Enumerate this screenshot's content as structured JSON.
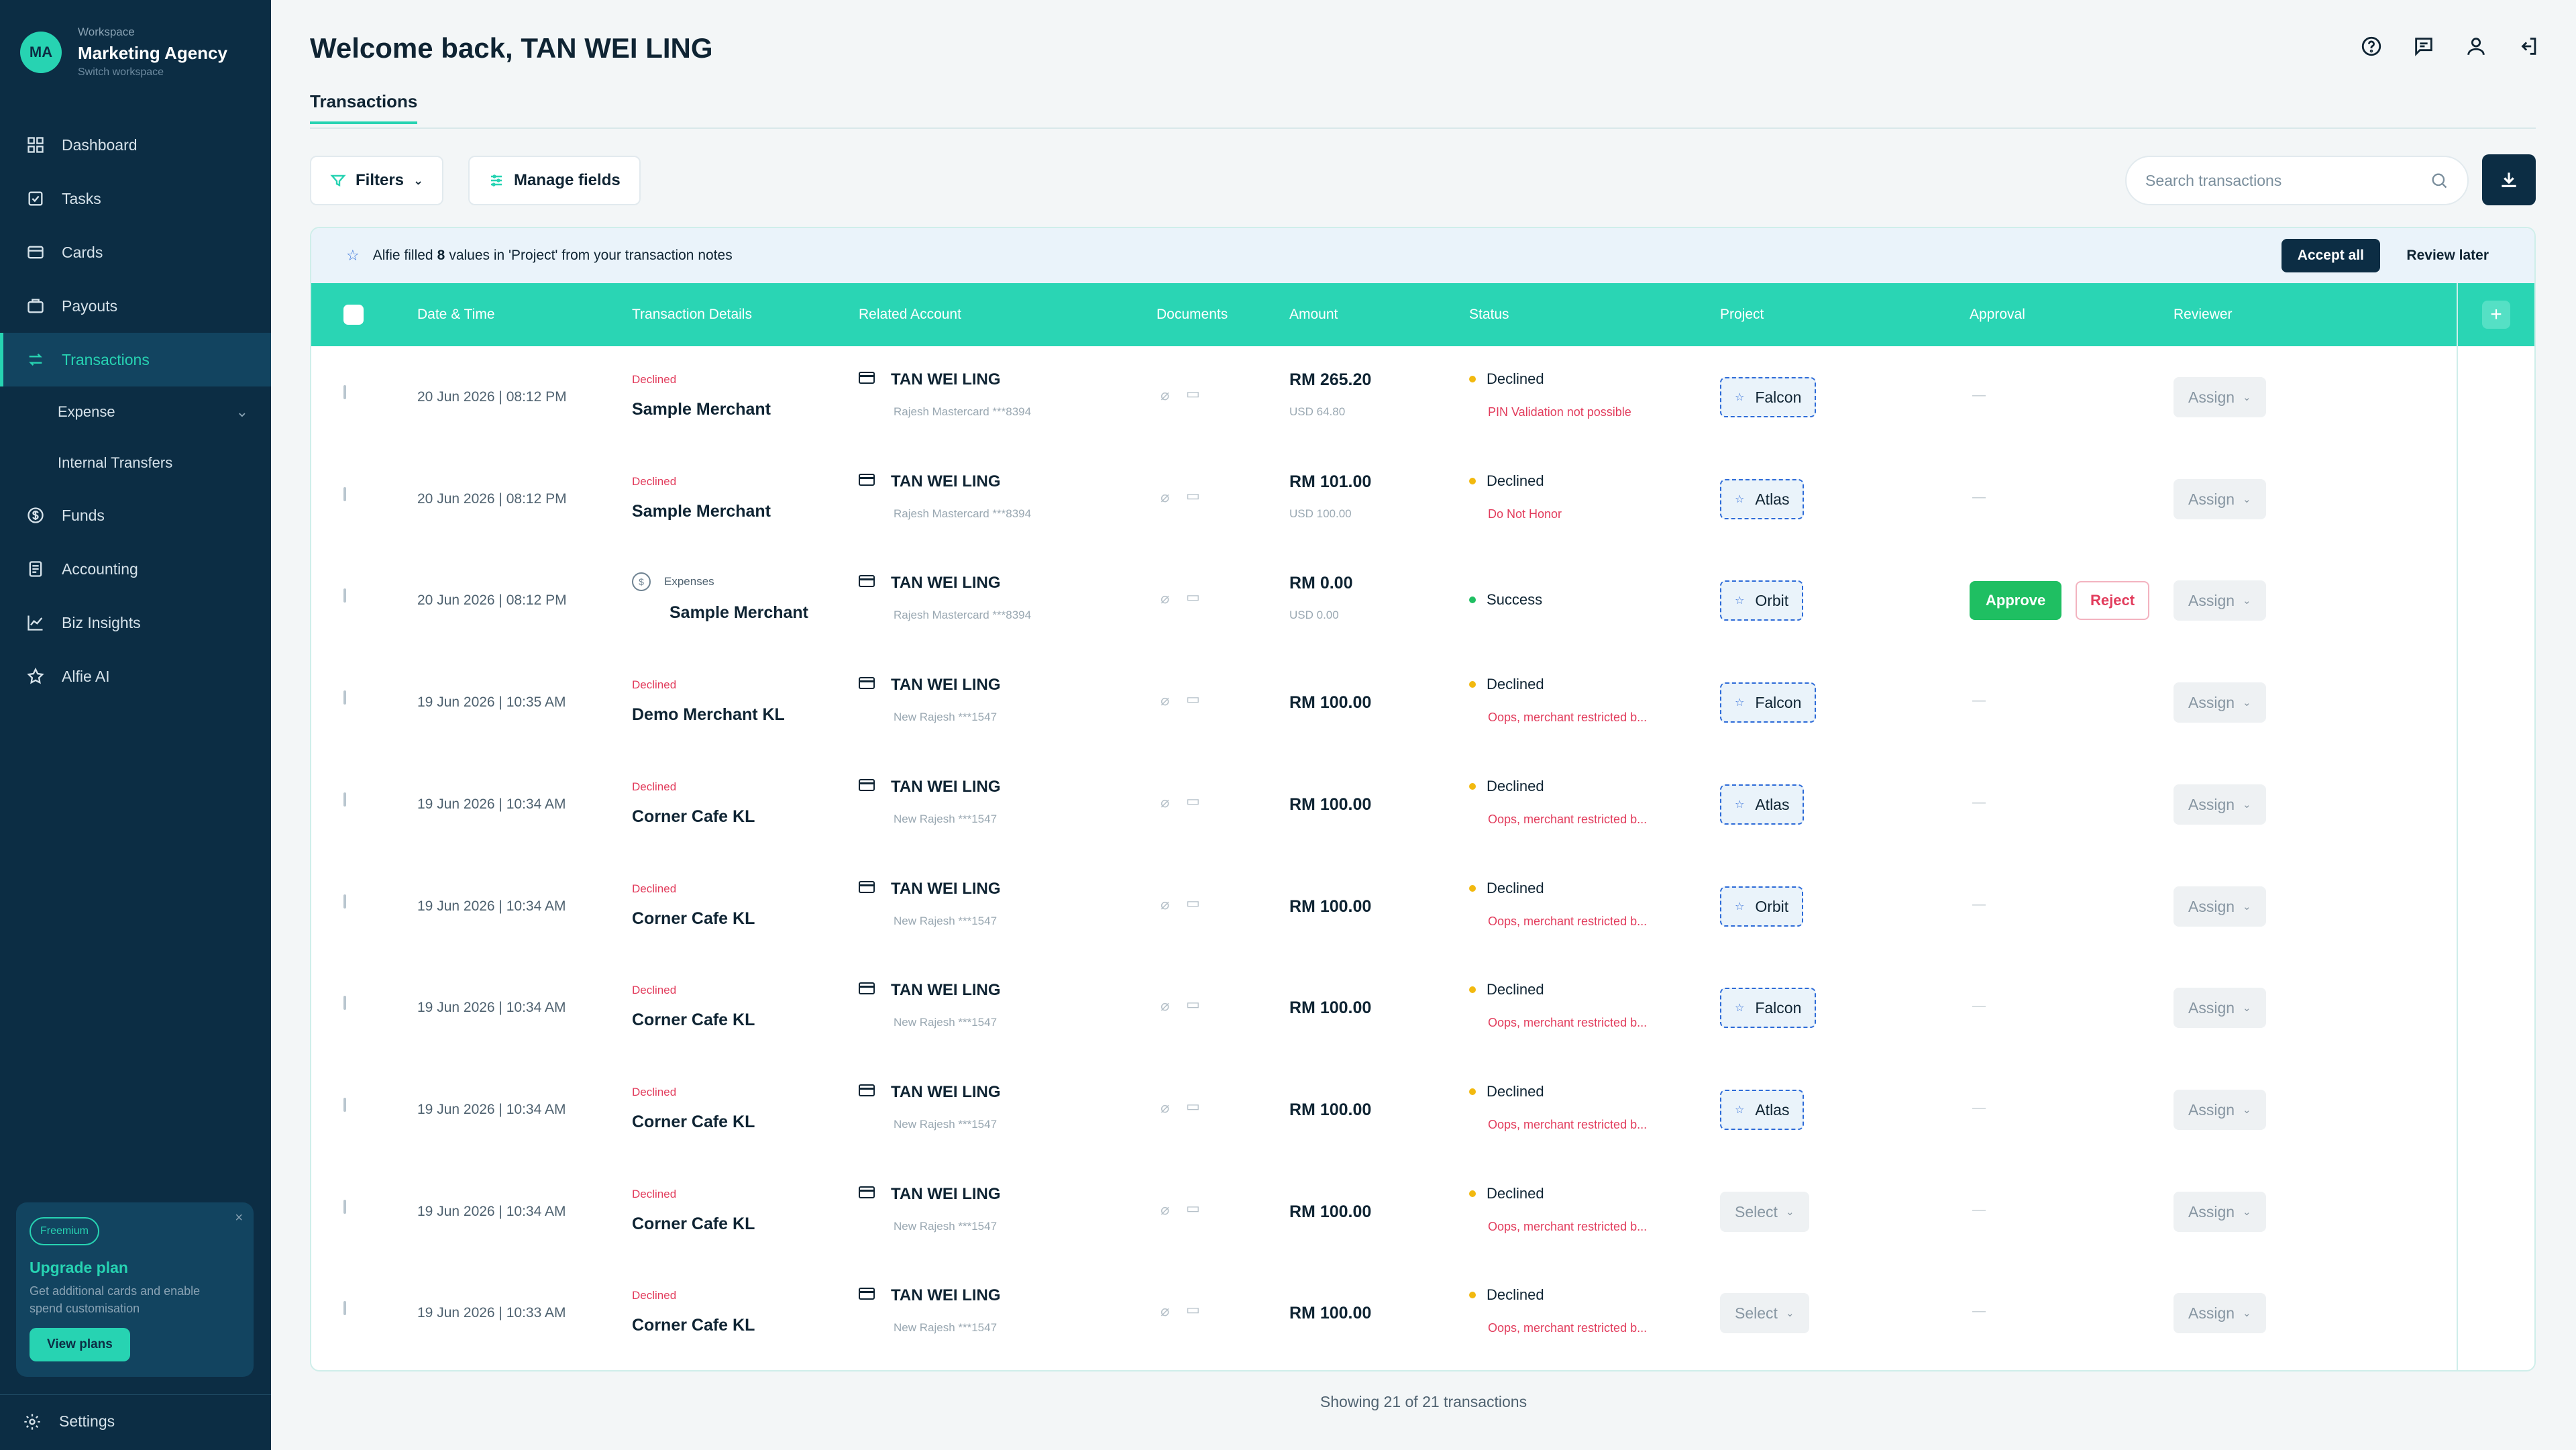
{
  "workspace": {
    "initials": "MA",
    "label": "Workspace",
    "name": "Marketing Agency",
    "switch": "Switch workspace"
  },
  "nav": [
    {
      "label": "Dashboard",
      "icon": "dashboard-icon"
    },
    {
      "label": "Tasks",
      "icon": "tasks-icon"
    },
    {
      "label": "Cards",
      "icon": "cards-icon"
    },
    {
      "label": "Payouts",
      "icon": "payouts-icon"
    },
    {
      "label": "Transactions",
      "icon": "transactions-icon"
    },
    {
      "label": "Expense"
    },
    {
      "label": "Internal Transfers"
    },
    {
      "label": "Funds",
      "icon": "funds-icon"
    },
    {
      "label": "Accounting",
      "icon": "accounting-icon"
    },
    {
      "label": "Biz Insights",
      "icon": "insights-icon"
    },
    {
      "label": "Alfie AI",
      "icon": "star-icon"
    }
  ],
  "upgrade": {
    "badge": "Freemium",
    "title": "Upgrade plan",
    "desc": "Get additional cards and enable spend customisation",
    "button": "View plans",
    "close": "×"
  },
  "settings": "Settings",
  "header": {
    "welcome": "Welcome back, TAN WEI LING",
    "tab": "Transactions"
  },
  "toolbar": {
    "filters": "Filters",
    "manage_fields": "Manage fields",
    "search_placeholder": "Search transactions"
  },
  "banner": {
    "pre": "Alfie filled",
    "count": "8",
    "post": "values in 'Project' from your transaction notes",
    "accept": "Accept all",
    "later": "Review later"
  },
  "columns": [
    "Date & Time",
    "Transaction Details",
    "Related Account",
    "Documents",
    "Amount",
    "Status",
    "Project",
    "Approval",
    "Reviewer"
  ],
  "rows": [
    {
      "date": "20 Jun 2026 | 08:12 PM",
      "tag": "Declined",
      "merchant": "Sample Merchant",
      "acct": "TAN WEI LING",
      "acct_sub": "Rajesh Mastercard ***8394",
      "amount": "RM 265.20",
      "amount_sub": "USD 64.80",
      "status": "Declined",
      "status_sub": "PIN Validation not possible",
      "project": "Falcon",
      "approval": "—",
      "reviewer": "Assign"
    },
    {
      "date": "20 Jun 2026 | 08:12 PM",
      "tag": "Declined",
      "merchant": "Sample Merchant",
      "acct": "TAN WEI LING",
      "acct_sub": "Rajesh Mastercard ***8394",
      "amount": "RM 101.00",
      "amount_sub": "USD 100.00",
      "status": "Declined",
      "status_sub": "Do Not Honor",
      "project": "Atlas",
      "approval": "—",
      "reviewer": "Assign"
    },
    {
      "date": "20 Jun 2026 | 08:12 PM",
      "tag": "Expenses",
      "merchant": "Sample Merchant",
      "acct": "TAN WEI LING",
      "acct_sub": "Rajesh Mastercard ***8394",
      "amount": "RM 0.00",
      "amount_sub": "USD 0.00",
      "status": "Success",
      "status_sub": "",
      "project": "Orbit",
      "approve": "Approve",
      "reject": "Reject",
      "reviewer": "Assign"
    },
    {
      "date": "19 Jun 2026 | 10:35 AM",
      "tag": "Declined",
      "merchant": "Demo Merchant KL",
      "acct": "TAN WEI LING",
      "acct_sub": "New Rajesh ***1547",
      "amount": "RM 100.00",
      "amount_sub": "",
      "status": "Declined",
      "status_sub": "Oops, merchant restricted b...",
      "project": "Falcon",
      "approval": "—",
      "reviewer": "Assign"
    },
    {
      "date": "19 Jun 2026 | 10:34 AM",
      "tag": "Declined",
      "merchant": "Corner Cafe KL",
      "acct": "TAN WEI LING",
      "acct_sub": "New Rajesh ***1547",
      "amount": "RM 100.00",
      "amount_sub": "",
      "status": "Declined",
      "status_sub": "Oops, merchant restricted b...",
      "project": "Atlas",
      "approval": "—",
      "reviewer": "Assign"
    },
    {
      "date": "19 Jun 2026 | 10:34 AM",
      "tag": "Declined",
      "merchant": "Corner Cafe KL",
      "acct": "TAN WEI LING",
      "acct_sub": "New Rajesh ***1547",
      "amount": "RM 100.00",
      "amount_sub": "",
      "status": "Declined",
      "status_sub": "Oops, merchant restricted b...",
      "project": "Orbit",
      "approval": "—",
      "reviewer": "Assign"
    },
    {
      "date": "19 Jun 2026 | 10:34 AM",
      "tag": "Declined",
      "merchant": "Corner Cafe KL",
      "acct": "TAN WEI LING",
      "acct_sub": "New Rajesh ***1547",
      "amount": "RM 100.00",
      "amount_sub": "",
      "status": "Declined",
      "status_sub": "Oops, merchant restricted b...",
      "project": "Falcon",
      "approval": "—",
      "reviewer": "Assign"
    },
    {
      "date": "19 Jun 2026 | 10:34 AM",
      "tag": "Declined",
      "merchant": "Corner Cafe KL",
      "acct": "TAN WEI LING",
      "acct_sub": "New Rajesh ***1547",
      "amount": "RM 100.00",
      "amount_sub": "",
      "status": "Declined",
      "status_sub": "Oops, merchant restricted b...",
      "project": "Atlas",
      "approval": "—",
      "reviewer": "Assign"
    },
    {
      "date": "19 Jun 2026 | 10:34 AM",
      "tag": "Declined",
      "merchant": "Corner Cafe KL",
      "acct": "TAN WEI LING",
      "acct_sub": "New Rajesh ***1547",
      "amount": "RM 100.00",
      "amount_sub": "",
      "status": "Declined",
      "status_sub": "Oops, merchant restricted b...",
      "project_select": "Select",
      "approval": "—",
      "reviewer": "Assign"
    },
    {
      "date": "19 Jun 2026 | 10:33 AM",
      "tag": "Declined",
      "merchant": "Corner Cafe KL",
      "acct": "TAN WEI LING",
      "acct_sub": "New Rajesh ***1547",
      "amount": "RM 100.00",
      "amount_sub": "",
      "status": "Declined",
      "status_sub": "Oops, merchant restricted b...",
      "project_select": "Select",
      "approval": "—",
      "reviewer": "Assign"
    }
  ],
  "footer": "Showing 21 of 21 transactions",
  "colors": {
    "sidebar": "#0c2d44",
    "accent": "#27d3b2",
    "declined": "#e23c5c",
    "warning_dot": "#f2b90f",
    "success_dot": "#1fbf62",
    "approve": "#1fbf62",
    "project_border": "#2d6bd8"
  }
}
